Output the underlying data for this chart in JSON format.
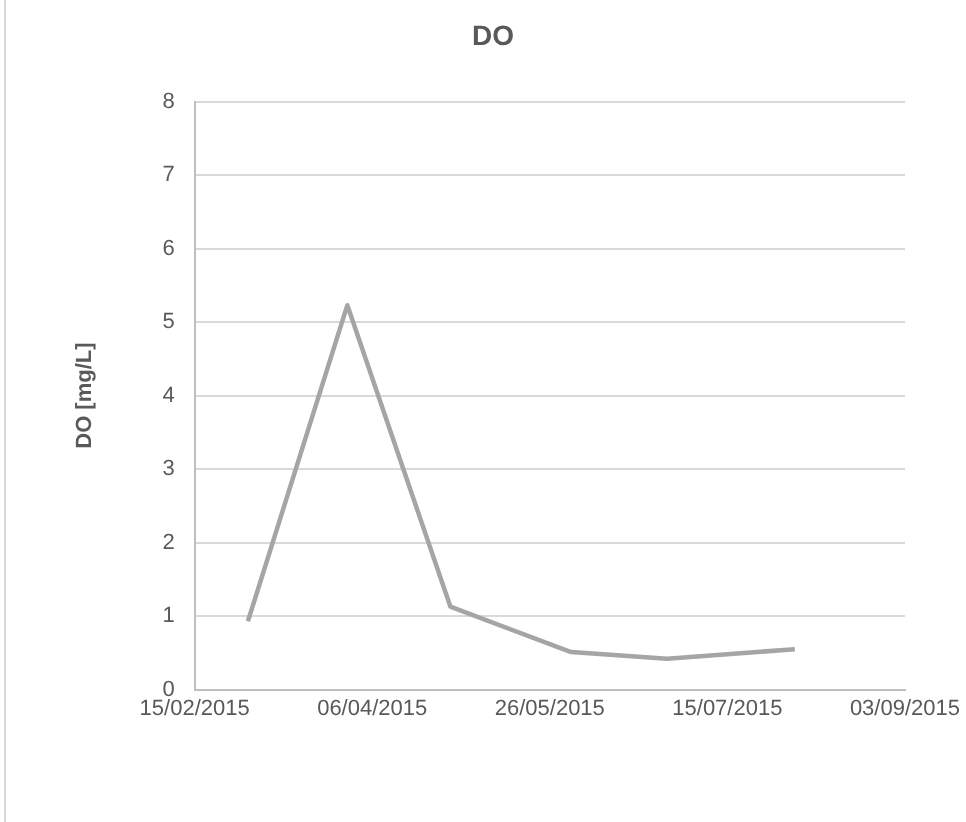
{
  "chart_data": {
    "type": "line",
    "title": "DO",
    "ylabel": "DO [mg/L]",
    "x": [
      "2015-03-02",
      "2015-03-30",
      "2015-04-28",
      "2015-06-01",
      "2015-06-28",
      "2015-08-03"
    ],
    "series": [
      {
        "color": "#a5a5a5",
        "values": [
          0.93,
          5.23,
          1.13,
          0.51,
          0.42,
          0.55
        ]
      }
    ],
    "xlim": [
      "2015-02-15",
      "2015-09-03"
    ],
    "xticks": [
      {
        "value": "2015-02-15",
        "label": "15/02/2015"
      },
      {
        "value": "2015-04-06",
        "label": "06/04/2015"
      },
      {
        "value": "2015-05-26",
        "label": "26/05/2015"
      },
      {
        "value": "2015-07-15",
        "label": "15/07/2015"
      },
      {
        "value": "2015-09-03",
        "label": "03/09/2015"
      }
    ],
    "ylim": [
      0,
      8
    ],
    "yticks": [
      0,
      1,
      2,
      3,
      4,
      5,
      6,
      7,
      8
    ],
    "grid": "y",
    "legend": false,
    "marker": "none",
    "line_style": "solid"
  }
}
